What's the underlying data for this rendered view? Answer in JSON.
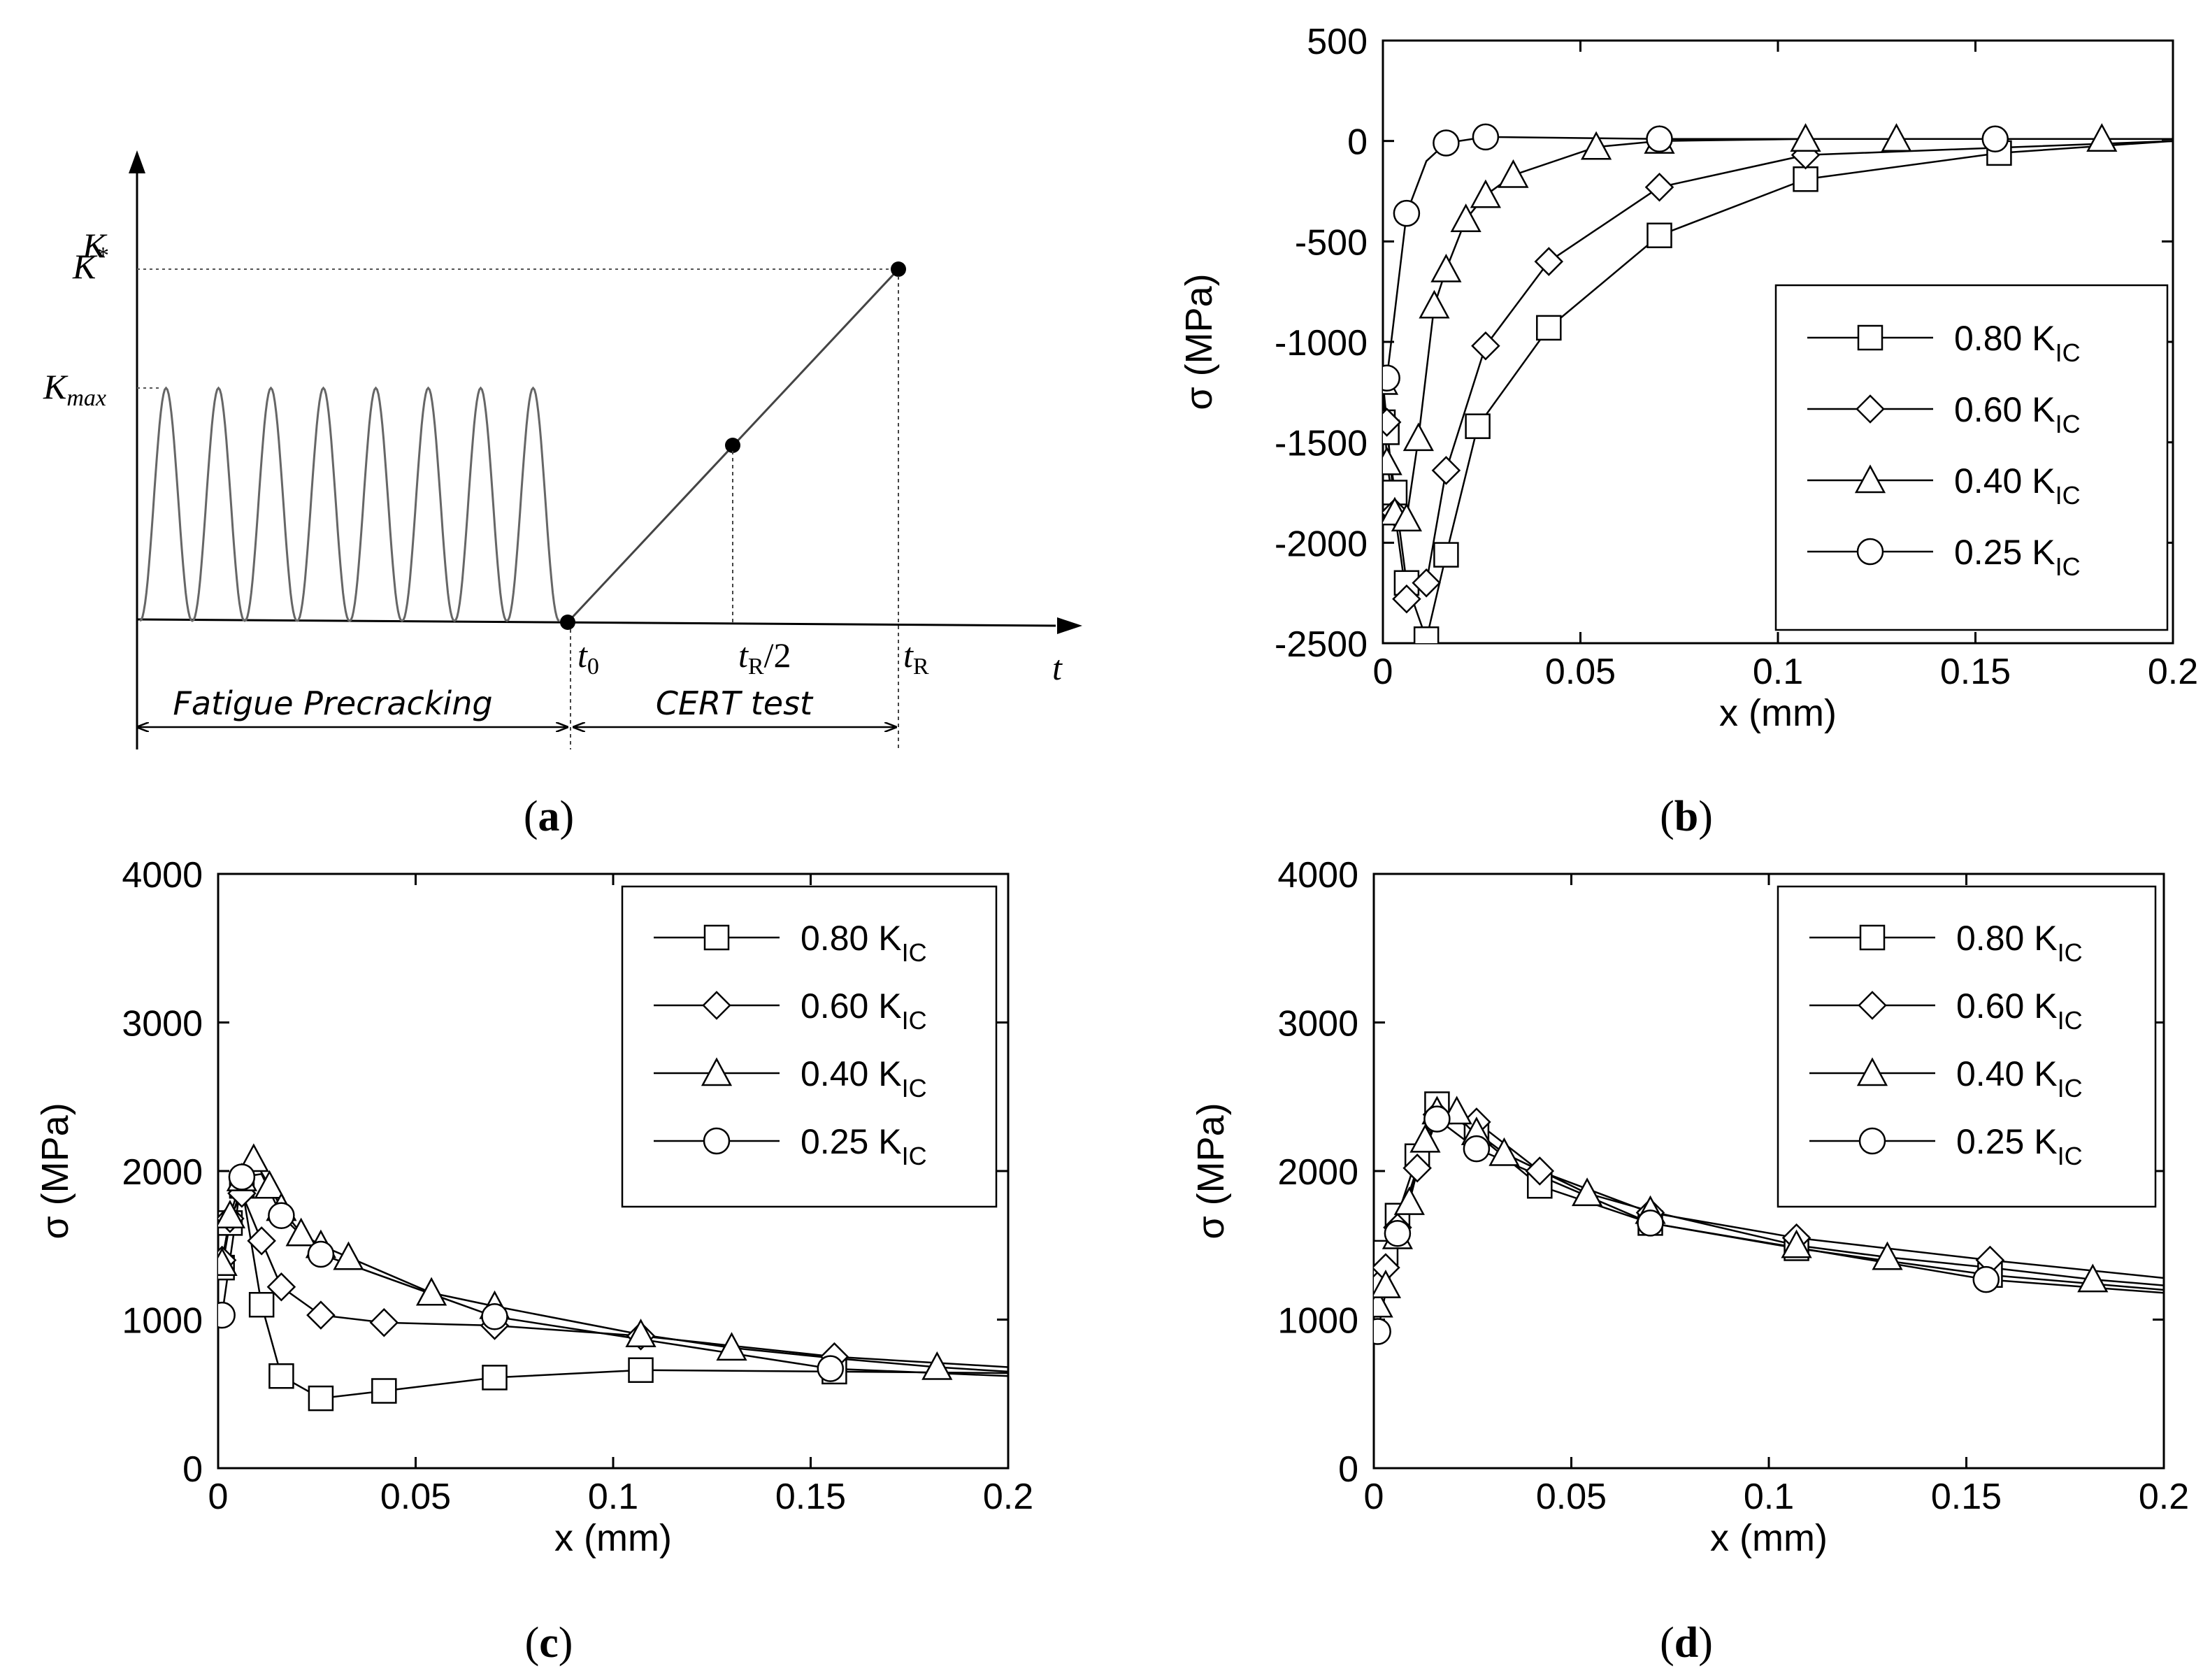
{
  "captions": {
    "a": "a",
    "b": "b",
    "c": "c",
    "d": "d"
  },
  "schematic": {
    "y_axis": "K",
    "x_axis": "t",
    "k_star": "K",
    "k_star_sup": "*",
    "k_max": "K",
    "k_max_sub": "max",
    "t0": "t",
    "t0_sub": "0",
    "t_half": "t",
    "t_half_sub": "R",
    "t_half_suffix": "/2",
    "t_r": "t",
    "t_r_sub": "R",
    "phase1": "Fatigue Precracking",
    "phase2": "CERT test",
    "cycles": 8
  },
  "chart_data": [
    {
      "panel": "b",
      "type": "line",
      "xlabel": "x (mm)",
      "ylabel": "σ (MPa)",
      "xlim": [
        0,
        0.2
      ],
      "ylim": [
        -2500,
        500
      ],
      "xticks": [
        "0",
        "0.05",
        "0.1",
        "0.15",
        "0.2"
      ],
      "yticks": [
        "500",
        "0",
        "-500",
        "-1000",
        "-1500",
        "-2000",
        "-2500"
      ],
      "xtick_values": [
        0,
        0.05,
        0.1,
        0.15,
        0.2
      ],
      "ytick_values": [
        500,
        0,
        -500,
        -1000,
        -1500,
        -2000,
        -2500
      ],
      "legend_position": "right",
      "series": [
        {
          "name": "0.80 K",
          "sub": "IC",
          "marker": "square",
          "x": [
            0,
            0.001,
            0.003,
            0.006,
            0.011,
            0.016,
            0.024,
            0.042,
            0.07,
            0.107,
            0.156,
            0.2
          ],
          "y": [
            -1400,
            -1450,
            -1750,
            -2200,
            -2480,
            -2060,
            -1420,
            -930,
            -470,
            -190,
            -60,
            0
          ],
          "marked": [
            0,
            1,
            2,
            3,
            4,
            5,
            6,
            7,
            8,
            9,
            10
          ]
        },
        {
          "name": "0.60 K",
          "sub": "IC",
          "marker": "diamond",
          "x": [
            0,
            0.001,
            0.003,
            0.006,
            0.011,
            0.016,
            0.026,
            0.042,
            0.07,
            0.107,
            0.2
          ],
          "y": [
            -1200,
            -1400,
            -1850,
            -2280,
            -2200,
            -1640,
            -1020,
            -600,
            -230,
            -70,
            0
          ],
          "marked": [
            0,
            1,
            2,
            3,
            4,
            5,
            6,
            7,
            8,
            9
          ]
        },
        {
          "name": "0.40 K",
          "sub": "IC",
          "marker": "triangle",
          "x": [
            0,
            0.001,
            0.003,
            0.006,
            0.009,
            0.013,
            0.016,
            0.021,
            0.026,
            0.033,
            0.054,
            0.07,
            0.107,
            0.13,
            0.182,
            0.2
          ],
          "y": [
            -1200,
            -1600,
            -1850,
            -1880,
            -1480,
            -820,
            -640,
            -390,
            -270,
            -170,
            -30,
            0,
            10,
            10,
            10,
            10
          ],
          "marked": [
            0,
            1,
            2,
            3,
            4,
            5,
            6,
            7,
            8,
            9,
            10,
            11,
            12,
            13,
            14
          ]
        },
        {
          "name": "0.25 K",
          "sub": "IC",
          "marker": "circle",
          "x": [
            0,
            0.001,
            0.006,
            0.011,
            0.016,
            0.026,
            0.07,
            0.155,
            0.2
          ],
          "y": [
            -1150,
            -1180,
            -360,
            -100,
            -10,
            20,
            10,
            10,
            10
          ],
          "marked": [
            1,
            2,
            4,
            5,
            6,
            7
          ]
        }
      ]
    },
    {
      "panel": "c",
      "type": "line",
      "xlabel": "x (mm)",
      "ylabel": "σ (MPa)",
      "xlim": [
        0,
        0.2
      ],
      "ylim": [
        0,
        4000
      ],
      "xticks": [
        "0",
        "0.05",
        "0.1",
        "0.15",
        "0.2"
      ],
      "yticks": [
        "0",
        "1000",
        "2000",
        "3000",
        "4000"
      ],
      "xtick_values": [
        0,
        0.05,
        0.1,
        0.15,
        0.2
      ],
      "ytick_values": [
        0,
        1000,
        2000,
        3000,
        4000
      ],
      "legend_position": "top-right",
      "series": [
        {
          "name": "0.80 K",
          "sub": "IC",
          "marker": "square",
          "x": [
            0.001,
            0.003,
            0.006,
            0.011,
            0.016,
            0.026,
            0.042,
            0.07,
            0.107,
            0.156,
            0.2
          ],
          "y": [
            1350,
            1650,
            1900,
            1100,
            620,
            470,
            520,
            610,
            660,
            650,
            640
          ],
          "marked": [
            0,
            1,
            2,
            3,
            4,
            5,
            6,
            7,
            8,
            9
          ]
        },
        {
          "name": "0.60 K",
          "sub": "IC",
          "marker": "diamond",
          "x": [
            0.001,
            0.003,
            0.006,
            0.011,
            0.016,
            0.026,
            0.042,
            0.07,
            0.107,
            0.156,
            0.2
          ],
          "y": [
            1400,
            1680,
            1850,
            1530,
            1220,
            1030,
            980,
            960,
            890,
            750,
            680
          ],
          "marked": [
            0,
            1,
            2,
            3,
            4,
            5,
            6,
            7,
            8,
            9
          ]
        },
        {
          "name": "0.40 K",
          "sub": "IC",
          "marker": "triangle",
          "x": [
            0.001,
            0.003,
            0.006,
            0.009,
            0.013,
            0.016,
            0.021,
            0.026,
            0.033,
            0.054,
            0.07,
            0.107,
            0.13,
            0.156,
            0.182,
            0.2
          ],
          "y": [
            1380,
            1700,
            1950,
            2080,
            1900,
            1750,
            1580,
            1500,
            1420,
            1180,
            1090,
            900,
            810,
            740,
            680,
            650
          ],
          "marked": [
            0,
            1,
            2,
            3,
            4,
            5,
            6,
            7,
            8,
            9,
            10,
            11,
            12,
            14
          ]
        },
        {
          "name": "0.25 K",
          "sub": "IC",
          "marker": "circle",
          "x": [
            0.001,
            0.006,
            0.011,
            0.016,
            0.026,
            0.07,
            0.155,
            0.2
          ],
          "y": [
            1030,
            1960,
            1980,
            1700,
            1440,
            1020,
            670,
            620
          ],
          "marked": [
            0,
            1,
            3,
            4,
            5,
            6
          ]
        }
      ]
    },
    {
      "panel": "d",
      "type": "line",
      "xlabel": "x (mm)",
      "ylabel": "σ (MPa)",
      "xlim": [
        0,
        0.2
      ],
      "ylim": [
        0,
        4000
      ],
      "xticks": [
        "0",
        "0.05",
        "0.1",
        "0.15",
        "0.2"
      ],
      "yticks": [
        "0",
        "1000",
        "2000",
        "3000",
        "4000"
      ],
      "xtick_values": [
        0,
        0.05,
        0.1,
        0.15,
        0.2
      ],
      "ytick_values": [
        0,
        1000,
        2000,
        3000,
        4000
      ],
      "legend_position": "top-right",
      "series": [
        {
          "name": "0.80 K",
          "sub": "IC",
          "marker": "square",
          "x": [
            0.001,
            0.003,
            0.006,
            0.011,
            0.016,
            0.026,
            0.042,
            0.07,
            0.107,
            0.156,
            0.2
          ],
          "y": [
            1300,
            1450,
            1700,
            2100,
            2450,
            2250,
            1900,
            1650,
            1480,
            1300,
            1200
          ],
          "marked": [
            0,
            1,
            2,
            3,
            4,
            5,
            6,
            7,
            8,
            9
          ]
        },
        {
          "name": "0.60 K",
          "sub": "IC",
          "marker": "diamond",
          "x": [
            0.001,
            0.003,
            0.006,
            0.011,
            0.016,
            0.026,
            0.042,
            0.07,
            0.107,
            0.156,
            0.2
          ],
          "y": [
            1230,
            1350,
            1620,
            2020,
            2380,
            2330,
            2000,
            1720,
            1550,
            1400,
            1280
          ],
          "marked": [
            0,
            1,
            2,
            3,
            4,
            5,
            6,
            7,
            8,
            9
          ]
        },
        {
          "name": "0.40 K",
          "sub": "IC",
          "marker": "triangle",
          "x": [
            0.001,
            0.003,
            0.006,
            0.009,
            0.013,
            0.016,
            0.021,
            0.026,
            0.033,
            0.054,
            0.07,
            0.107,
            0.13,
            0.156,
            0.182,
            0.2
          ],
          "y": [
            1100,
            1230,
            1560,
            1790,
            2210,
            2400,
            2400,
            2260,
            2120,
            1850,
            1730,
            1500,
            1420,
            1350,
            1270,
            1230
          ],
          "marked": [
            0,
            1,
            2,
            3,
            4,
            5,
            6,
            7,
            8,
            9,
            10,
            11,
            12,
            14
          ]
        },
        {
          "name": "0.25 K",
          "sub": "IC",
          "marker": "circle",
          "x": [
            0.001,
            0.006,
            0.011,
            0.016,
            0.026,
            0.07,
            0.155,
            0.2
          ],
          "y": [
            920,
            1580,
            2000,
            2350,
            2150,
            1650,
            1270,
            1180
          ],
          "marked": [
            0,
            1,
            3,
            4,
            5,
            6
          ]
        }
      ]
    }
  ]
}
